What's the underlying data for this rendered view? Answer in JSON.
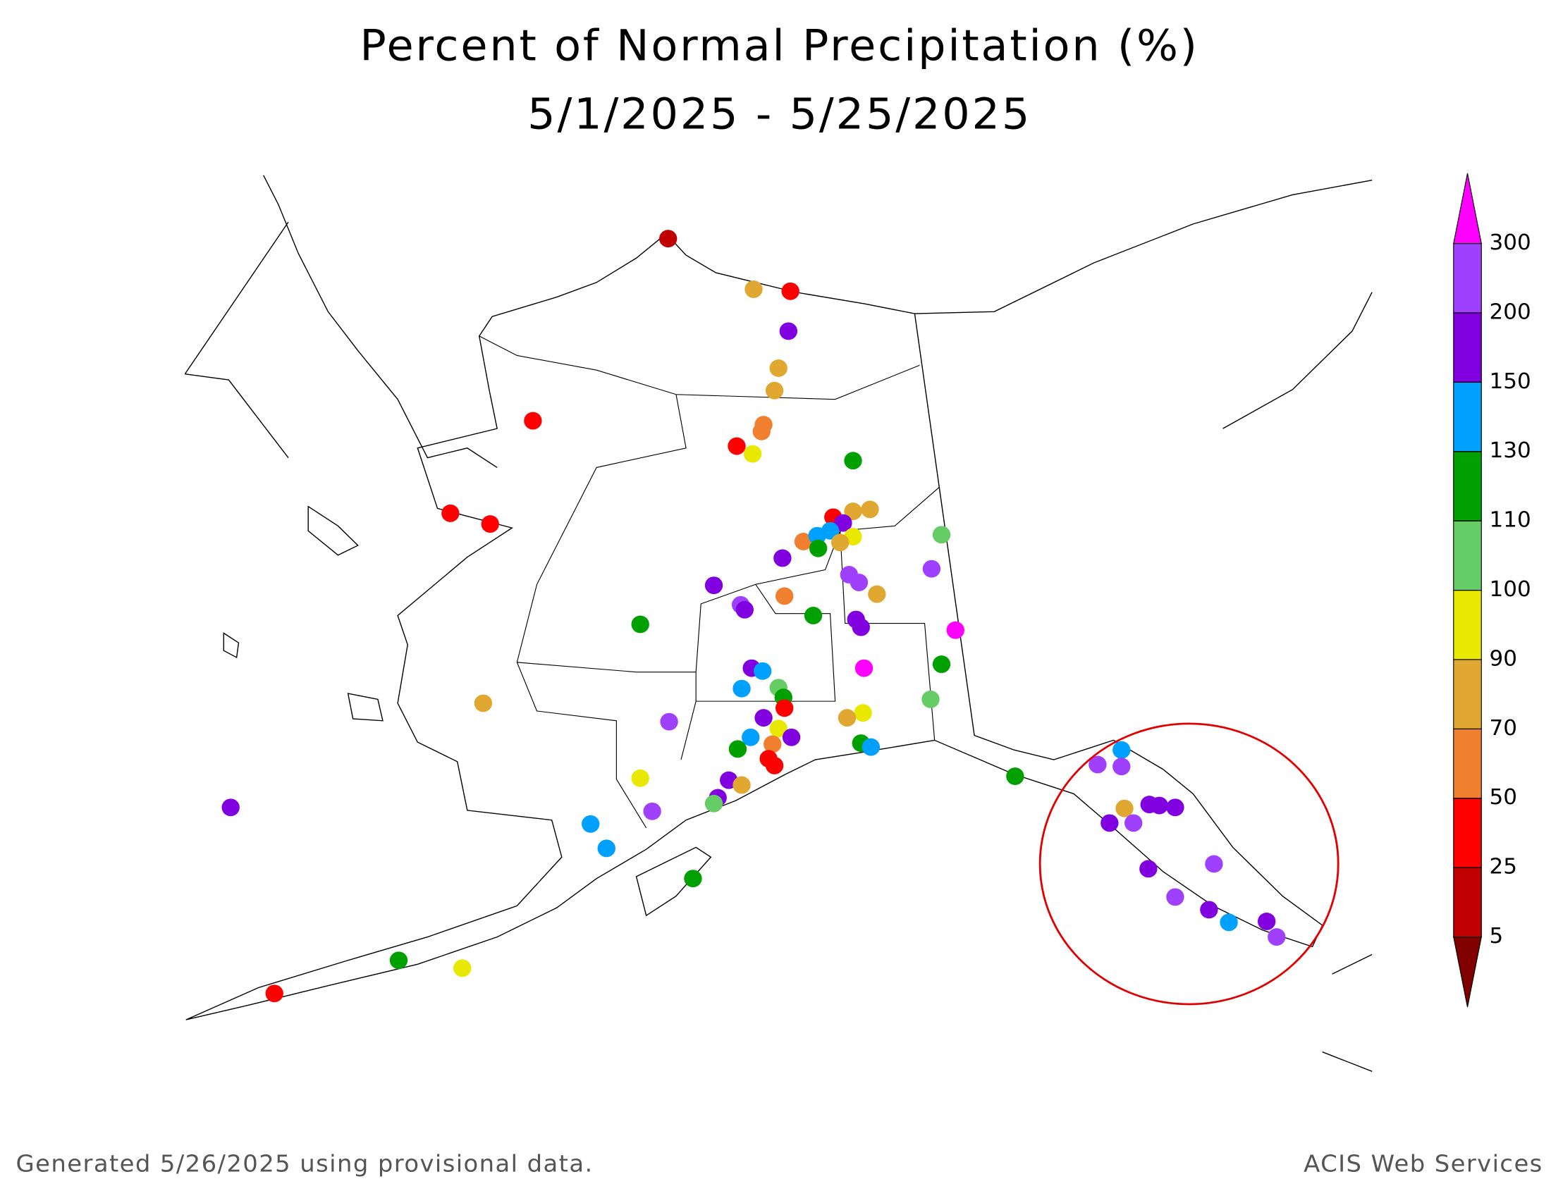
{
  "title": [
    "Percent of Normal Precipitation (%)",
    "5/1/2025 - 5/25/2025"
  ],
  "colorbar": {
    "ticks": [
      5,
      25,
      50,
      70,
      90,
      100,
      110,
      130,
      150,
      200,
      300
    ],
    "colors": [
      "#800000",
      "#c00000",
      "#ff0000",
      "#f08030",
      "#e0a830",
      "#e8e800",
      "#66cc66",
      "#00a000",
      "#00a0ff",
      "#8000e0",
      "#a040ff",
      "#ff00ff"
    ]
  },
  "footer": {
    "left": "Generated 5/26/2025 using provisional data.",
    "right": "ACIS Web Services"
  }
}
